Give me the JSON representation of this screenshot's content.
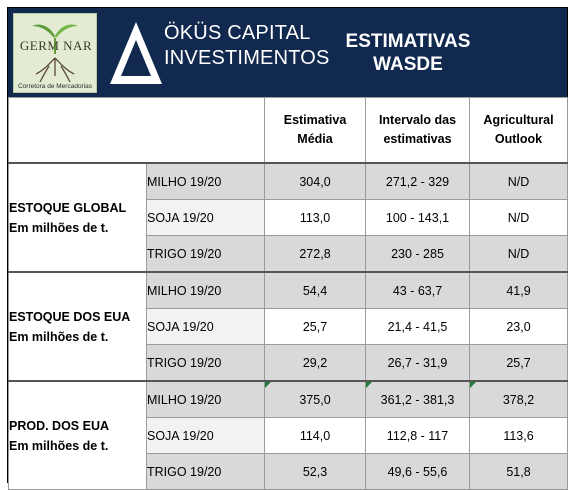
{
  "header": {
    "logo": {
      "text": "GERM NAR",
      "subtitle": "Corretora de Mercadorias"
    },
    "brand": {
      "line1": "ÖKÜS CAPITAL",
      "line2": "INVESTIMENTOS",
      "mark_color": "#ffffff"
    },
    "title_line1": "ESTIMATIVAS",
    "title_line2": "WASDE",
    "background_color": "#11284f"
  },
  "table": {
    "columns": [
      {
        "line1": "Estimativa",
        "line2": "Média"
      },
      {
        "line1": "Intervalo das",
        "line2": "estimativas"
      },
      {
        "line1": "Agricultural",
        "line2": "Outlook"
      }
    ],
    "groups": [
      {
        "label_line1": "ESTOQUE GLOBAL",
        "label_line2": "Em milhões de t.",
        "rows": [
          {
            "product": "MILHO 19/20",
            "media": "304,0",
            "intervalo": "271,2 - 329",
            "outlook": "N/D"
          },
          {
            "product": "SOJA 19/20",
            "media": "113,0",
            "intervalo": "100 - 143,1",
            "outlook": "N/D"
          },
          {
            "product": "TRIGO 19/20",
            "media": "272,8",
            "intervalo": "230 - 285",
            "outlook": "N/D"
          }
        ]
      },
      {
        "label_line1": "ESTOQUE DOS EUA",
        "label_line2": "Em milhões de t.",
        "rows": [
          {
            "product": "MILHO 19/20",
            "media": "54,4",
            "intervalo": "43 - 63,7",
            "outlook": "41,9"
          },
          {
            "product": "SOJA 19/20",
            "media": "25,7",
            "intervalo": "21,4 - 41,5",
            "outlook": "23,0"
          },
          {
            "product": "TRIGO 19/20",
            "media": "29,2",
            "intervalo": "26,7 - 31,9",
            "outlook": "25,7"
          }
        ]
      },
      {
        "label_line1": "PROD. DOS EUA",
        "label_line2": "Em milhões de t.",
        "rows": [
          {
            "product": "MILHO 19/20",
            "media": "375,0",
            "intervalo": "361,2 - 381,3",
            "outlook": "378,2"
          },
          {
            "product": "SOJA 19/20",
            "media": "114,0",
            "intervalo": "112,8 - 117",
            "outlook": "113,6"
          },
          {
            "product": "TRIGO 19/20",
            "media": "52,3",
            "intervalo": "49,6 - 55,6",
            "outlook": "51,8"
          }
        ]
      }
    ]
  }
}
